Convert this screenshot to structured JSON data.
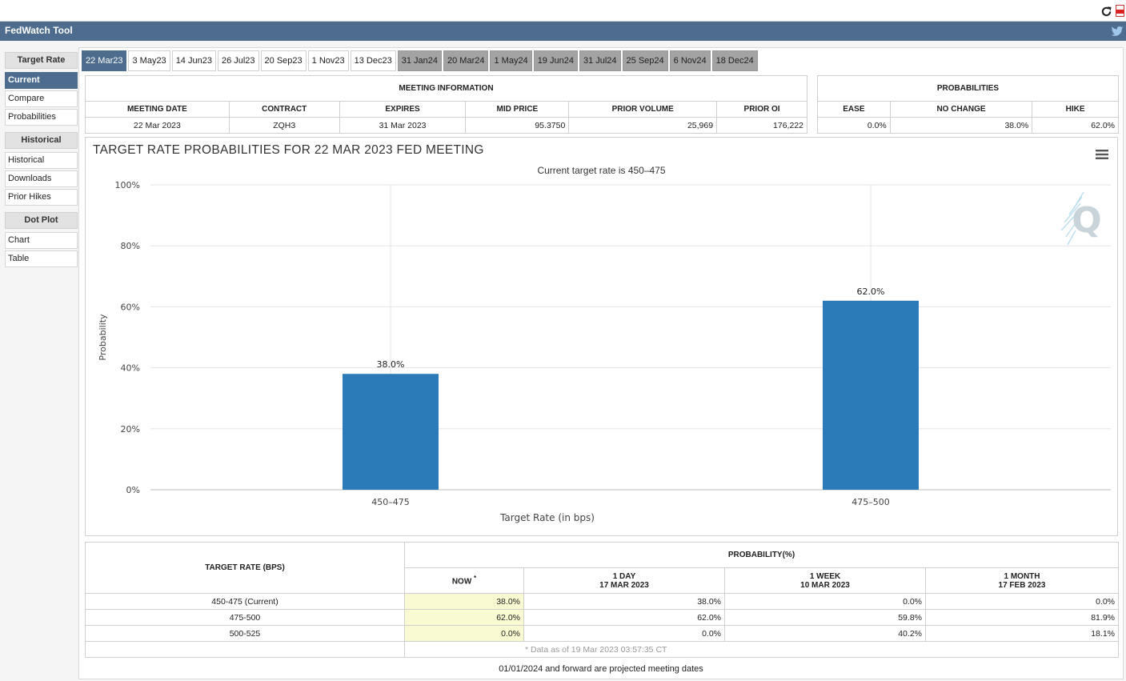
{
  "header": {
    "title": "FedWatch Tool",
    "twitter_icon": "twitter-icon"
  },
  "browser": {
    "reload_icon": "reload-icon",
    "pdf_icon": "pdf-icon"
  },
  "sidebar": {
    "groups": [
      {
        "label": "Target Rate",
        "items": [
          "Current",
          "Compare",
          "Probabilities"
        ]
      },
      {
        "label": "Historical",
        "items": [
          "Historical",
          "Downloads",
          "Prior Hikes"
        ]
      },
      {
        "label": "Dot Plot",
        "items": [
          "Chart",
          "Table"
        ]
      }
    ],
    "active": "Current"
  },
  "tabs": [
    {
      "label": "22 Mar23",
      "state": "active"
    },
    {
      "label": "3 May23",
      "state": "normal"
    },
    {
      "label": "14 Jun23",
      "state": "normal"
    },
    {
      "label": "26 Jul23",
      "state": "normal"
    },
    {
      "label": "20 Sep23",
      "state": "normal"
    },
    {
      "label": "1 Nov23",
      "state": "normal"
    },
    {
      "label": "13 Dec23",
      "state": "normal"
    },
    {
      "label": "31 Jan24",
      "state": "projected"
    },
    {
      "label": "20 Mar24",
      "state": "projected"
    },
    {
      "label": "1 May24",
      "state": "projected"
    },
    {
      "label": "19 Jun24",
      "state": "projected"
    },
    {
      "label": "31 Jul24",
      "state": "projected"
    },
    {
      "label": "25 Sep24",
      "state": "projected"
    },
    {
      "label": "6 Nov24",
      "state": "projected"
    },
    {
      "label": "18 Dec24",
      "state": "projected"
    }
  ],
  "meeting_info": {
    "caption": "MEETING INFORMATION",
    "headers": [
      "MEETING DATE",
      "CONTRACT",
      "EXPIRES",
      "MID PRICE",
      "PRIOR VOLUME",
      "PRIOR OI"
    ],
    "values": [
      "22 Mar 2023",
      "ZQH3",
      "31 Mar 2023",
      "95.3750",
      "25,969",
      "176,222"
    ]
  },
  "probabilities": {
    "caption": "PROBABILITIES",
    "headers": [
      "EASE",
      "NO CHANGE",
      "HIKE"
    ],
    "values": [
      "0.0%",
      "38.0%",
      "62.0%"
    ]
  },
  "chart": {
    "menu_icon": "hamburger-menu-icon",
    "watermark_icon": "quikstrike-q-logo-icon"
  },
  "chart_data": {
    "type": "bar",
    "title": "TARGET RATE PROBABILITIES FOR 22 MAR 2023 FED MEETING",
    "subtitle": "Current target rate is 450–475",
    "xlabel": "Target Rate (in bps)",
    "ylabel": "Probability",
    "categories": [
      "450–475",
      "475–500"
    ],
    "values": [
      38.0,
      62.0
    ],
    "data_labels": [
      "38.0%",
      "62.0%"
    ],
    "ylim": [
      0,
      100
    ],
    "yticks": [
      0,
      20,
      40,
      60,
      80,
      100
    ],
    "ytick_labels": [
      "0%",
      "20%",
      "40%",
      "60%",
      "80%",
      "100%"
    ],
    "bar_color": "#2b7bb9",
    "grid": true,
    "legend": "none"
  },
  "prob_table": {
    "rate_header": "TARGET RATE (BPS)",
    "prob_header": "PROBABILITY(%)",
    "now_label": "NOW",
    "now_marker": "*",
    "cols": [
      {
        "line1": "1 DAY",
        "line2": "17 MAR 2023"
      },
      {
        "line1": "1 WEEK",
        "line2": "10 MAR 2023"
      },
      {
        "line1": "1 MONTH",
        "line2": "17 FEB 2023"
      }
    ],
    "rows": [
      {
        "rate": "450-475 (Current)",
        "now": "38.0%",
        "vals": [
          "38.0%",
          "0.0%",
          "0.0%"
        ]
      },
      {
        "rate": "475-500",
        "now": "62.0%",
        "vals": [
          "62.0%",
          "59.8%",
          "81.9%"
        ]
      },
      {
        "rate": "500-525",
        "now": "0.0%",
        "vals": [
          "0.0%",
          "40.2%",
          "18.1%"
        ]
      }
    ],
    "footnote": "* Data as of 19 Mar 2023 03:57:35 CT"
  },
  "projected_note": "01/01/2024 and forward are projected meeting dates",
  "colors": {
    "header_bg": "#4d6c8e",
    "projected_tab": "#a3a3a3",
    "now_highlight": "#fafad2"
  }
}
